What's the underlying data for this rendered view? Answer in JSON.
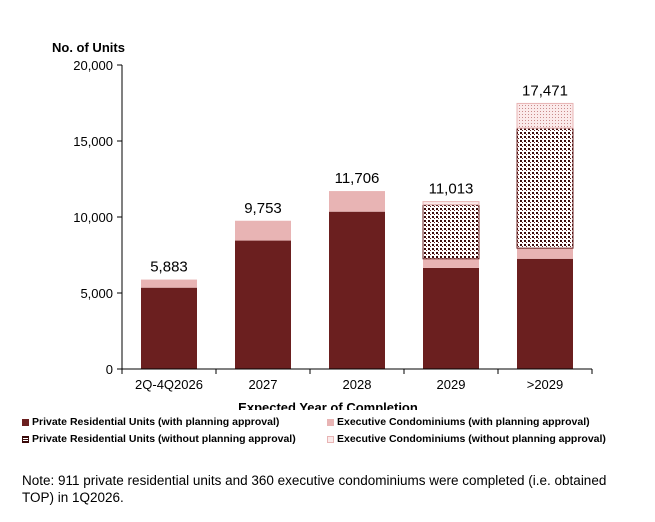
{
  "chart_data": {
    "type": "bar",
    "stacked": true,
    "ylabel": "No. of Units",
    "xlabel": "Expected Year of Completion",
    "ylim": [
      0,
      20000
    ],
    "yticks": [
      0,
      5000,
      10000,
      15000,
      20000
    ],
    "ytick_labels": [
      "0",
      "5,000",
      "10,000",
      "15,000",
      "20,000"
    ],
    "categories": [
      "2Q-4Q2026",
      "2027",
      "2028",
      "2029",
      ">2029"
    ],
    "series": [
      {
        "name": "Private Residential Units (with planning approval)",
        "pattern": "solid",
        "color": "#6b1f1f",
        "values": [
          5350,
          8450,
          10350,
          6650,
          7250
        ]
      },
      {
        "name": "Executive Condominiums (with planning approval)",
        "pattern": "solid",
        "color": "#e8b4b4",
        "values": [
          533,
          1303,
          1356,
          600,
          700
        ]
      },
      {
        "name": "Private Residential Units (without planning approval)",
        "pattern": "grid",
        "color": "#6b1f1f",
        "values": [
          0,
          0,
          0,
          3563,
          7900
        ]
      },
      {
        "name": "Executive Condominiums (without planning approval)",
        "pattern": "dots",
        "color": "#e8b4b4",
        "values": [
          0,
          0,
          0,
          200,
          1621
        ]
      }
    ],
    "totals": [
      5883,
      9753,
      11706,
      11013,
      17471
    ],
    "total_labels": [
      "5,883",
      "9,753",
      "11,706",
      "11,013",
      "17,471"
    ]
  },
  "note": "Note: 911 private residential units and 360 executive condominiums were completed (i.e. obtained TOP) in 1Q2026."
}
